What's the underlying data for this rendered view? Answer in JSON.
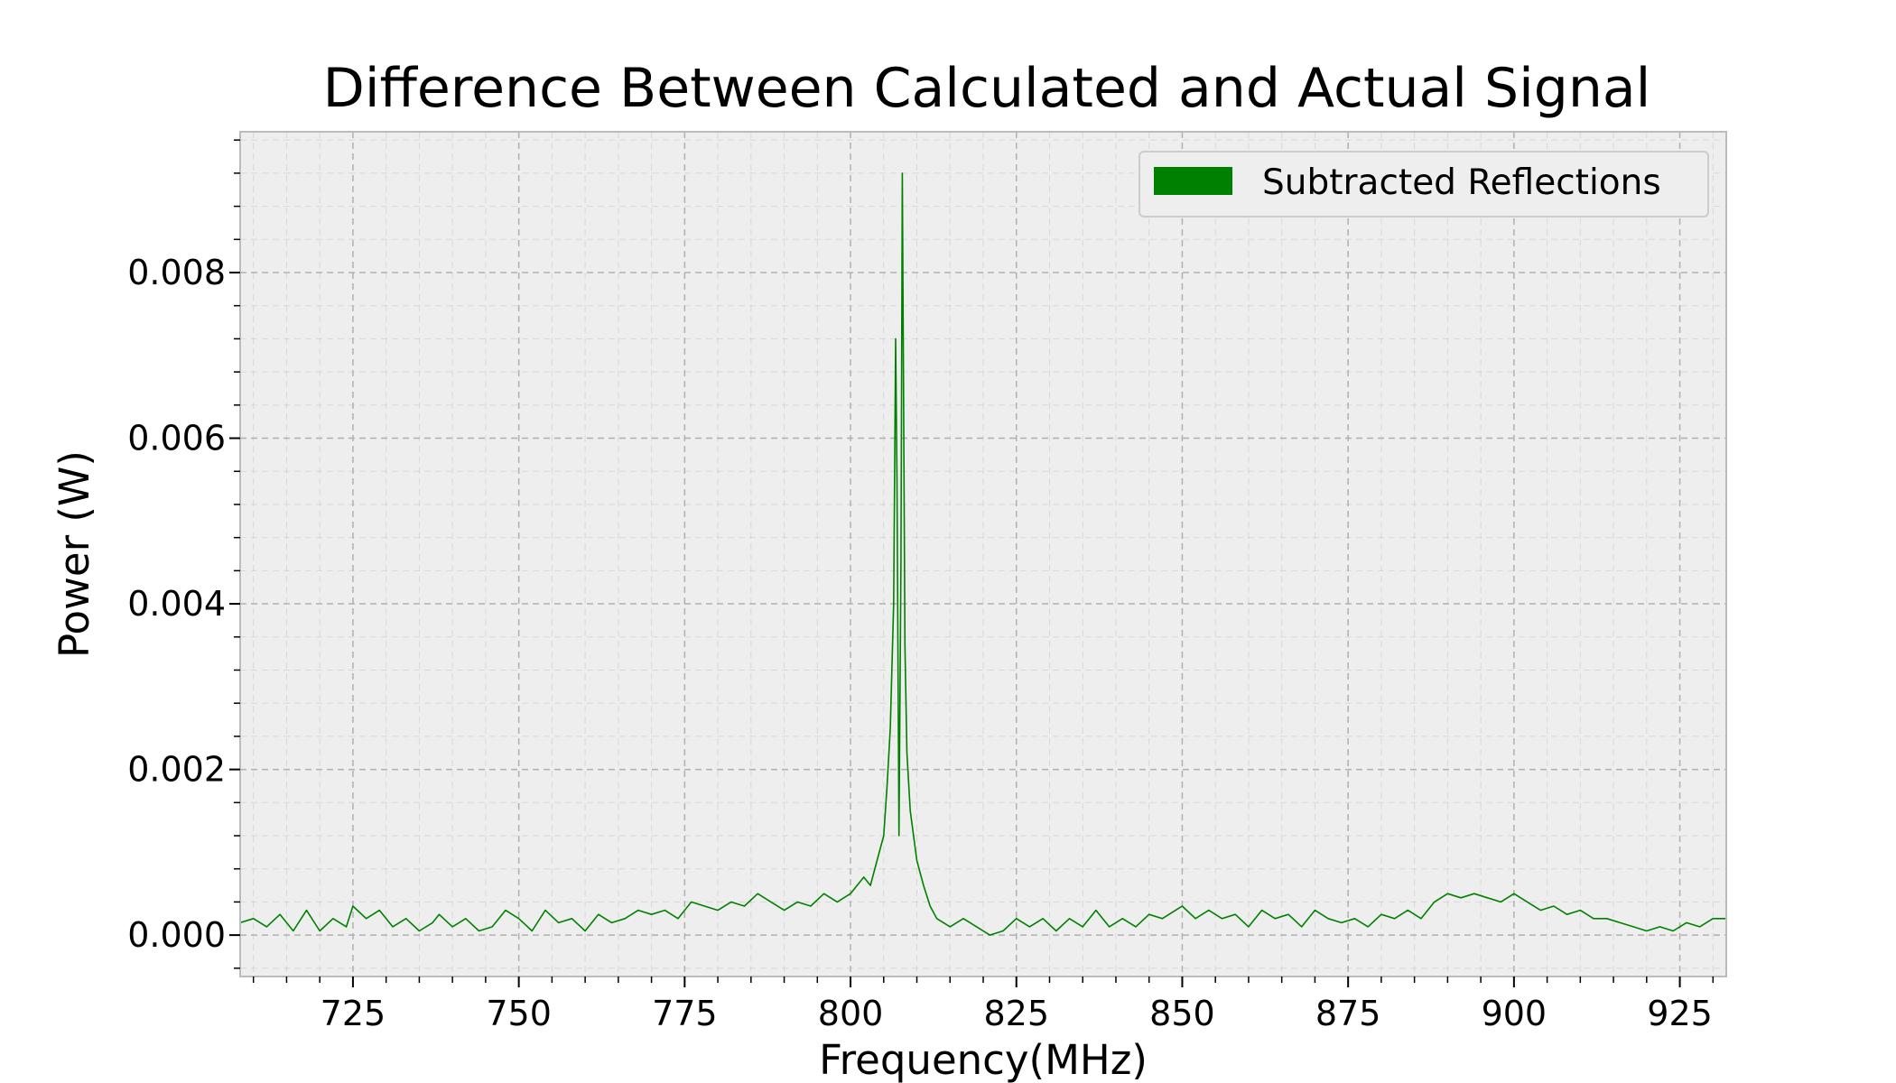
{
  "chart_data": {
    "type": "line",
    "title": "Difference Between Calculated and Actual Signal",
    "xlabel": "Frequency(MHz)",
    "ylabel": "Power (W)",
    "xlim": [
      708,
      932
    ],
    "ylim": [
      -0.0005,
      0.0097
    ],
    "x_ticks": [
      725,
      750,
      775,
      800,
      825,
      850,
      875,
      900,
      925
    ],
    "x_tick_labels": [
      "725",
      "750",
      "775",
      "800",
      "825",
      "850",
      "875",
      "900",
      "925"
    ],
    "x_minor_step": 5,
    "y_ticks": [
      0.0,
      0.002,
      0.004,
      0.006,
      0.008
    ],
    "y_tick_labels": [
      "0.000",
      "0.002",
      "0.004",
      "0.006",
      "0.008"
    ],
    "y_minor_step": 0.0004,
    "grid": true,
    "legend_position": "top-right",
    "colors": {
      "series": "#008000",
      "plot_background": "#eeeeee",
      "grid": "#b0b0b0",
      "frame": "#bcbcbc"
    },
    "series": [
      {
        "name": "Subtracted Reflections",
        "x": [
          708,
          710,
          712,
          714,
          716,
          718,
          720,
          722,
          724,
          725,
          727,
          729,
          731,
          733,
          735,
          737,
          738,
          740,
          742,
          744,
          746,
          748,
          750,
          752,
          754,
          756,
          758,
          760,
          762,
          764,
          766,
          768,
          770,
          772,
          774,
          776,
          778,
          780,
          782,
          784,
          786,
          788,
          790,
          792,
          794,
          796,
          798,
          800,
          802,
          803,
          804,
          805,
          805.5,
          806,
          806.5,
          806.8,
          807.0,
          807.3,
          807.6,
          807.8,
          808.0,
          808.2,
          808.5,
          809,
          810,
          811,
          812,
          813,
          815,
          817,
          819,
          821,
          823,
          825,
          827,
          829,
          831,
          833,
          835,
          837,
          839,
          841,
          843,
          845,
          847,
          849,
          850,
          852,
          854,
          856,
          858,
          860,
          862,
          864,
          866,
          868,
          870,
          872,
          874,
          876,
          878,
          880,
          882,
          884,
          886,
          888,
          890,
          892,
          894,
          896,
          898,
          900,
          902,
          904,
          906,
          908,
          910,
          912,
          914,
          916,
          918,
          920,
          922,
          924,
          926,
          928,
          930,
          932
        ],
        "values": [
          0.00015,
          0.0002,
          0.0001,
          0.00025,
          5e-05,
          0.0003,
          5e-05,
          0.0002,
          0.0001,
          0.00035,
          0.0002,
          0.0003,
          0.0001,
          0.0002,
          5e-05,
          0.00015,
          0.00025,
          0.0001,
          0.0002,
          5e-05,
          0.0001,
          0.0003,
          0.0002,
          5e-05,
          0.0003,
          0.00015,
          0.0002,
          5e-05,
          0.00025,
          0.00015,
          0.0002,
          0.0003,
          0.00025,
          0.0003,
          0.0002,
          0.0004,
          0.00035,
          0.0003,
          0.0004,
          0.00035,
          0.0005,
          0.0004,
          0.0003,
          0.0004,
          0.00035,
          0.0005,
          0.0004,
          0.0005,
          0.0007,
          0.0006,
          0.0009,
          0.0012,
          0.0018,
          0.0025,
          0.004,
          0.0072,
          0.0055,
          0.0012,
          0.0045,
          0.0092,
          0.0065,
          0.0035,
          0.0022,
          0.0015,
          0.0009,
          0.0006,
          0.00035,
          0.0002,
          0.0001,
          0.0002,
          0.0001,
          0.0,
          5e-05,
          0.0002,
          0.0001,
          0.0002,
          5e-05,
          0.0002,
          0.0001,
          0.0003,
          0.0001,
          0.0002,
          0.0001,
          0.00025,
          0.0002,
          0.0003,
          0.00035,
          0.0002,
          0.0003,
          0.0002,
          0.00025,
          0.0001,
          0.0003,
          0.0002,
          0.00025,
          0.0001,
          0.0003,
          0.0002,
          0.00015,
          0.0002,
          0.0001,
          0.00025,
          0.0002,
          0.0003,
          0.0002,
          0.0004,
          0.0005,
          0.00045,
          0.0005,
          0.00045,
          0.0004,
          0.0005,
          0.0004,
          0.0003,
          0.00035,
          0.00025,
          0.0003,
          0.0002,
          0.0002,
          0.00015,
          0.0001,
          5e-05,
          0.0001,
          5e-05,
          0.00015,
          0.0001,
          0.0002,
          0.0002
        ]
      }
    ]
  }
}
